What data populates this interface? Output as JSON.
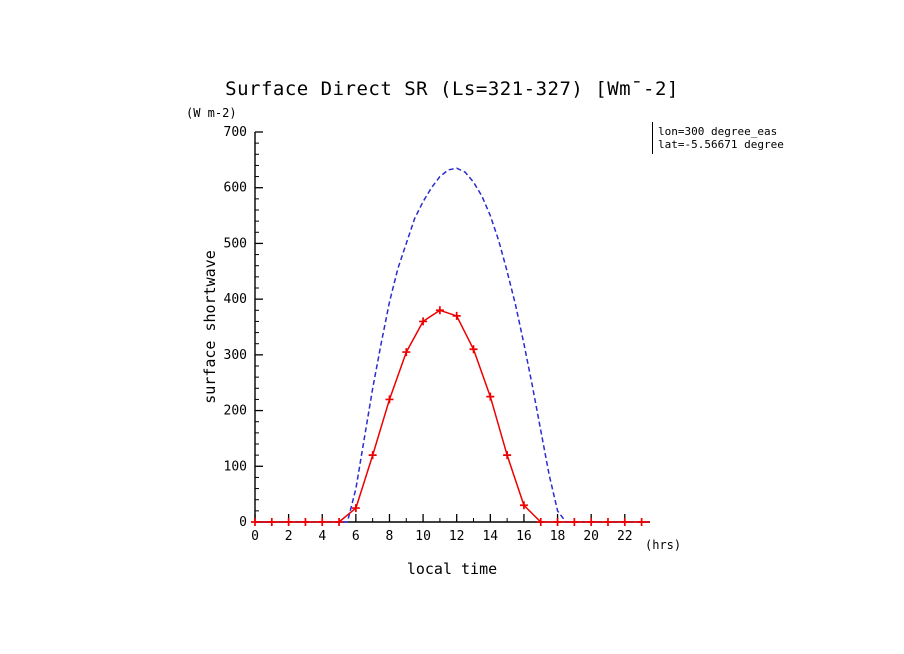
{
  "chart_data": {
    "type": "line",
    "title": "Surface Direct SR (Ls=321-327) [Wm¯-2]",
    "xlabel": "local time",
    "x_unit": "(hrs)",
    "ylabel": "surface shortwave",
    "y_unit": "(W m-2)",
    "xlim": [
      0,
      23.5
    ],
    "ylim": [
      0,
      700
    ],
    "xticks": [
      0,
      2,
      4,
      6,
      8,
      10,
      12,
      14,
      16,
      18,
      20,
      22
    ],
    "xticks_minor_step": 1,
    "yticks": [
      0,
      100,
      200,
      300,
      400,
      500,
      600,
      700
    ],
    "yticks_minor_step": 20,
    "grid": false,
    "legend": "none",
    "axis_color": "#000000",
    "annotations": [
      "lon=300 degree_eas",
      "lat=-5.56671 degree"
    ],
    "series": [
      {
        "name": "blue-dashed-curve",
        "color": "#2b2bd0",
        "style": "dashed",
        "marker": "none",
        "x": [
          0,
          1,
          2,
          3,
          4,
          5,
          5.5,
          6,
          6.5,
          7,
          7.5,
          8,
          8.5,
          9,
          9.5,
          10,
          10.5,
          11,
          11.5,
          12,
          12.5,
          13,
          13.5,
          14,
          14.5,
          15,
          15.5,
          16,
          16.5,
          17,
          17.5,
          18,
          18.5,
          19,
          20,
          21,
          22,
          23,
          23.5
        ],
        "values": [
          0,
          0,
          0,
          0,
          0,
          0,
          0,
          60,
          150,
          240,
          320,
          395,
          455,
          500,
          545,
          575,
          600,
          620,
          632,
          635,
          628,
          610,
          585,
          550,
          505,
          450,
          390,
          320,
          245,
          165,
          85,
          20,
          0,
          0,
          0,
          0,
          0,
          0,
          0
        ]
      },
      {
        "name": "red-solid-curve",
        "color": "#ee0000",
        "style": "solid",
        "marker": "plus",
        "x": [
          0,
          1,
          2,
          3,
          4,
          5,
          6,
          7,
          8,
          9,
          10,
          11,
          12,
          13,
          14,
          15,
          16,
          17,
          18,
          19,
          20,
          21,
          22,
          23,
          23.5
        ],
        "values": [
          0,
          0,
          0,
          0,
          0,
          0,
          25,
          120,
          220,
          305,
          360,
          380,
          370,
          310,
          225,
          120,
          30,
          0,
          0,
          0,
          0,
          0,
          0,
          0,
          0
        ]
      }
    ]
  }
}
